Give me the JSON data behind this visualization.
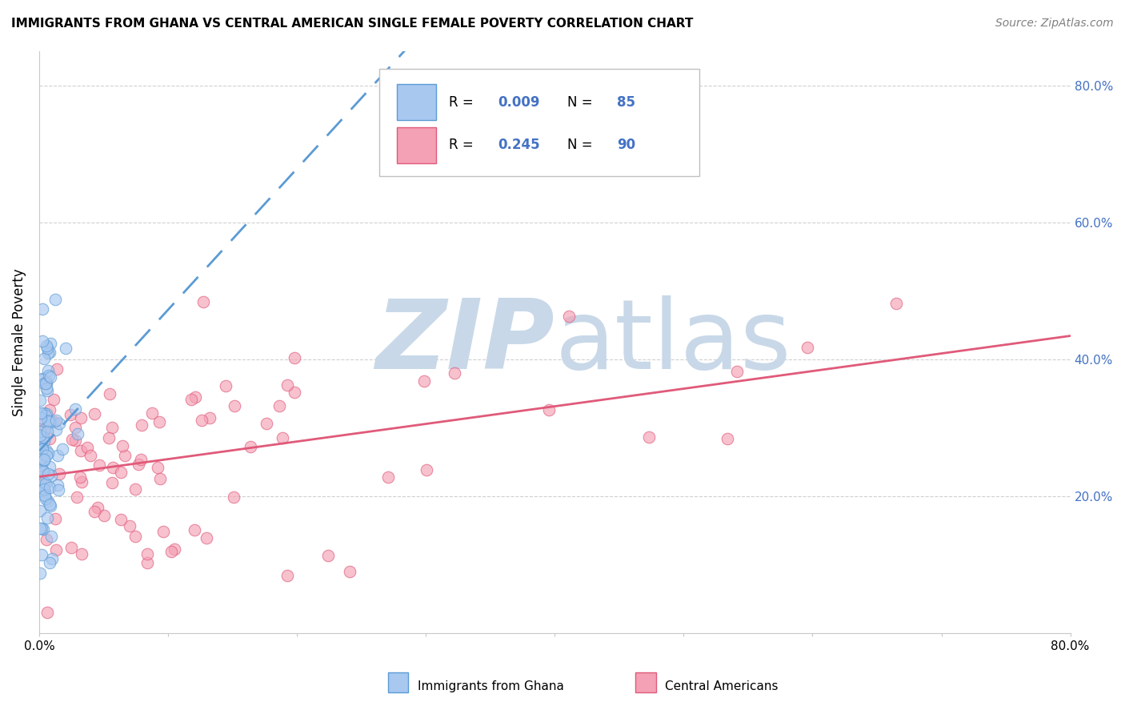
{
  "title": "IMMIGRANTS FROM GHANA VS CENTRAL AMERICAN SINGLE FEMALE POVERTY CORRELATION CHART",
  "source": "Source: ZipAtlas.com",
  "ylabel": "Single Female Poverty",
  "xlim": [
    0.0,
    0.8
  ],
  "ylim": [
    0.0,
    0.85
  ],
  "xtick_positions": [
    0.0,
    0.1,
    0.2,
    0.3,
    0.4,
    0.5,
    0.6,
    0.7,
    0.8
  ],
  "xticklabels": [
    "0.0%",
    "",
    "",
    "",
    "",
    "",
    "",
    "",
    "80.0%"
  ],
  "ytick_positions": [
    0.2,
    0.4,
    0.6,
    0.8
  ],
  "ytick_labels": [
    "20.0%",
    "40.0%",
    "60.0%",
    "80.0%"
  ],
  "legend_label1": "Immigrants from Ghana",
  "legend_label2": "Central Americans",
  "R_ghana": 0.009,
  "N_ghana": 85,
  "R_central": 0.245,
  "N_central": 90,
  "color_ghana_fill": "#a8c8f0",
  "color_ghana_edge": "#5b9bd5",
  "color_central_fill": "#f4a0b5",
  "color_central_edge": "#e05a7a",
  "trendline_ghana_color": "#5b9bd5",
  "trendline_central_color": "#e05a7a",
  "watermark_zip_color": "#c8d8e8",
  "watermark_atlas_color": "#c8d8e8",
  "grid_color": "#d0d0d0",
  "legend_r1": "0.009",
  "legend_n1": "85",
  "legend_r2": "0.245",
  "legend_n2": "90",
  "accent_color": "#4472c4",
  "title_fontsize": 11,
  "source_fontsize": 10
}
